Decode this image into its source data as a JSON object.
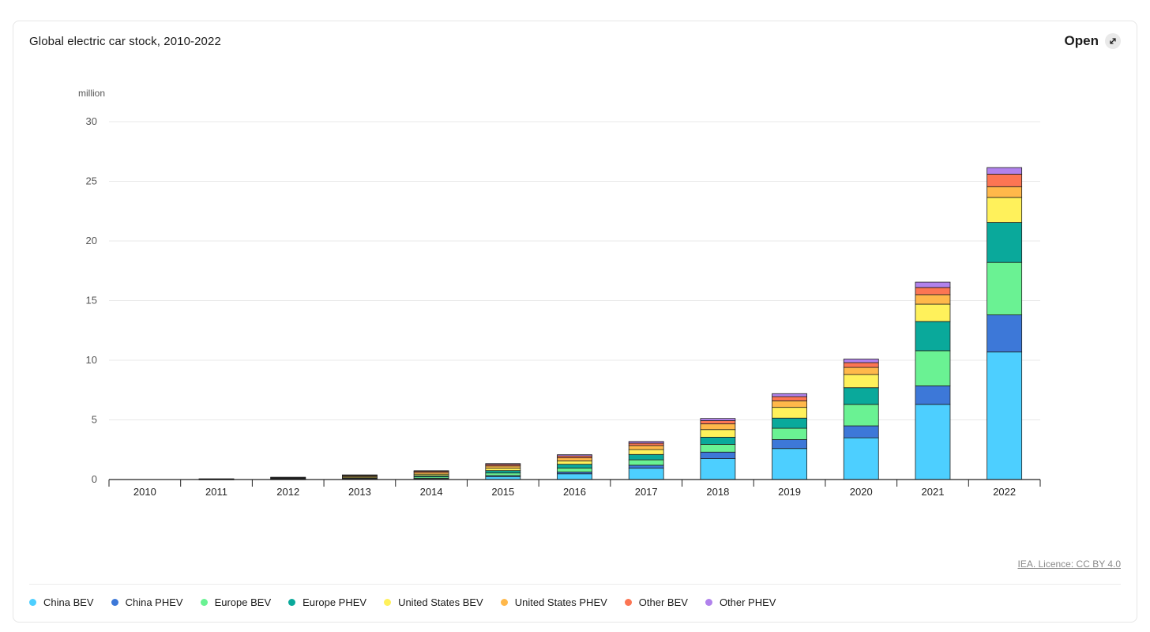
{
  "header": {
    "title": "Global electric car stock, 2010-2022",
    "open_label": "Open",
    "licence": "IEA. Licence: CC BY 4.0"
  },
  "chart_data": {
    "type": "bar",
    "stacked": true,
    "title": "Global electric car stock, 2010-2022",
    "ylabel": "million",
    "xlabel": "",
    "ylim": [
      0,
      30
    ],
    "yticks": [
      0,
      5,
      10,
      15,
      20,
      25,
      30
    ],
    "grid": true,
    "legend_position": "bottom",
    "categories": [
      "2010",
      "2011",
      "2012",
      "2013",
      "2014",
      "2015",
      "2016",
      "2017",
      "2018",
      "2019",
      "2020",
      "2021",
      "2022"
    ],
    "series": [
      {
        "name": "China BEV",
        "color": "#4dcfff",
        "values": [
          0.0,
          0.01,
          0.02,
          0.03,
          0.08,
          0.25,
          0.48,
          0.95,
          1.75,
          2.6,
          3.5,
          6.3,
          10.7
        ]
      },
      {
        "name": "China PHEV",
        "color": "#3d78d8",
        "values": [
          0.0,
          0.0,
          0.0,
          0.01,
          0.02,
          0.08,
          0.15,
          0.25,
          0.55,
          0.75,
          1.0,
          1.55,
          3.1
        ]
      },
      {
        "name": "Europe BEV",
        "color": "#6af293",
        "values": [
          0.0,
          0.01,
          0.03,
          0.06,
          0.12,
          0.22,
          0.33,
          0.45,
          0.65,
          0.95,
          1.8,
          2.95,
          4.4
        ]
      },
      {
        "name": "Europe PHEV",
        "color": "#0aa99b",
        "values": [
          0.0,
          0.0,
          0.01,
          0.04,
          0.1,
          0.2,
          0.32,
          0.45,
          0.6,
          0.85,
          1.4,
          2.45,
          3.35
        ]
      },
      {
        "name": "United States BEV",
        "color": "#fff15b",
        "values": [
          0.0,
          0.01,
          0.04,
          0.08,
          0.13,
          0.2,
          0.29,
          0.41,
          0.64,
          0.9,
          1.1,
          1.45,
          2.1
        ]
      },
      {
        "name": "United States PHEV",
        "color": "#ffb84a",
        "values": [
          0.0,
          0.02,
          0.05,
          0.09,
          0.15,
          0.19,
          0.25,
          0.34,
          0.48,
          0.55,
          0.6,
          0.8,
          0.9
        ]
      },
      {
        "name": "Other BEV",
        "color": "#fc7553",
        "values": [
          0.0,
          0.01,
          0.03,
          0.06,
          0.1,
          0.13,
          0.16,
          0.2,
          0.27,
          0.35,
          0.4,
          0.6,
          1.05
        ]
      },
      {
        "name": "Other PHEV",
        "color": "#b182ec",
        "values": [
          0.0,
          0.0,
          0.01,
          0.02,
          0.04,
          0.07,
          0.1,
          0.14,
          0.18,
          0.25,
          0.3,
          0.45,
          0.55
        ]
      }
    ]
  }
}
